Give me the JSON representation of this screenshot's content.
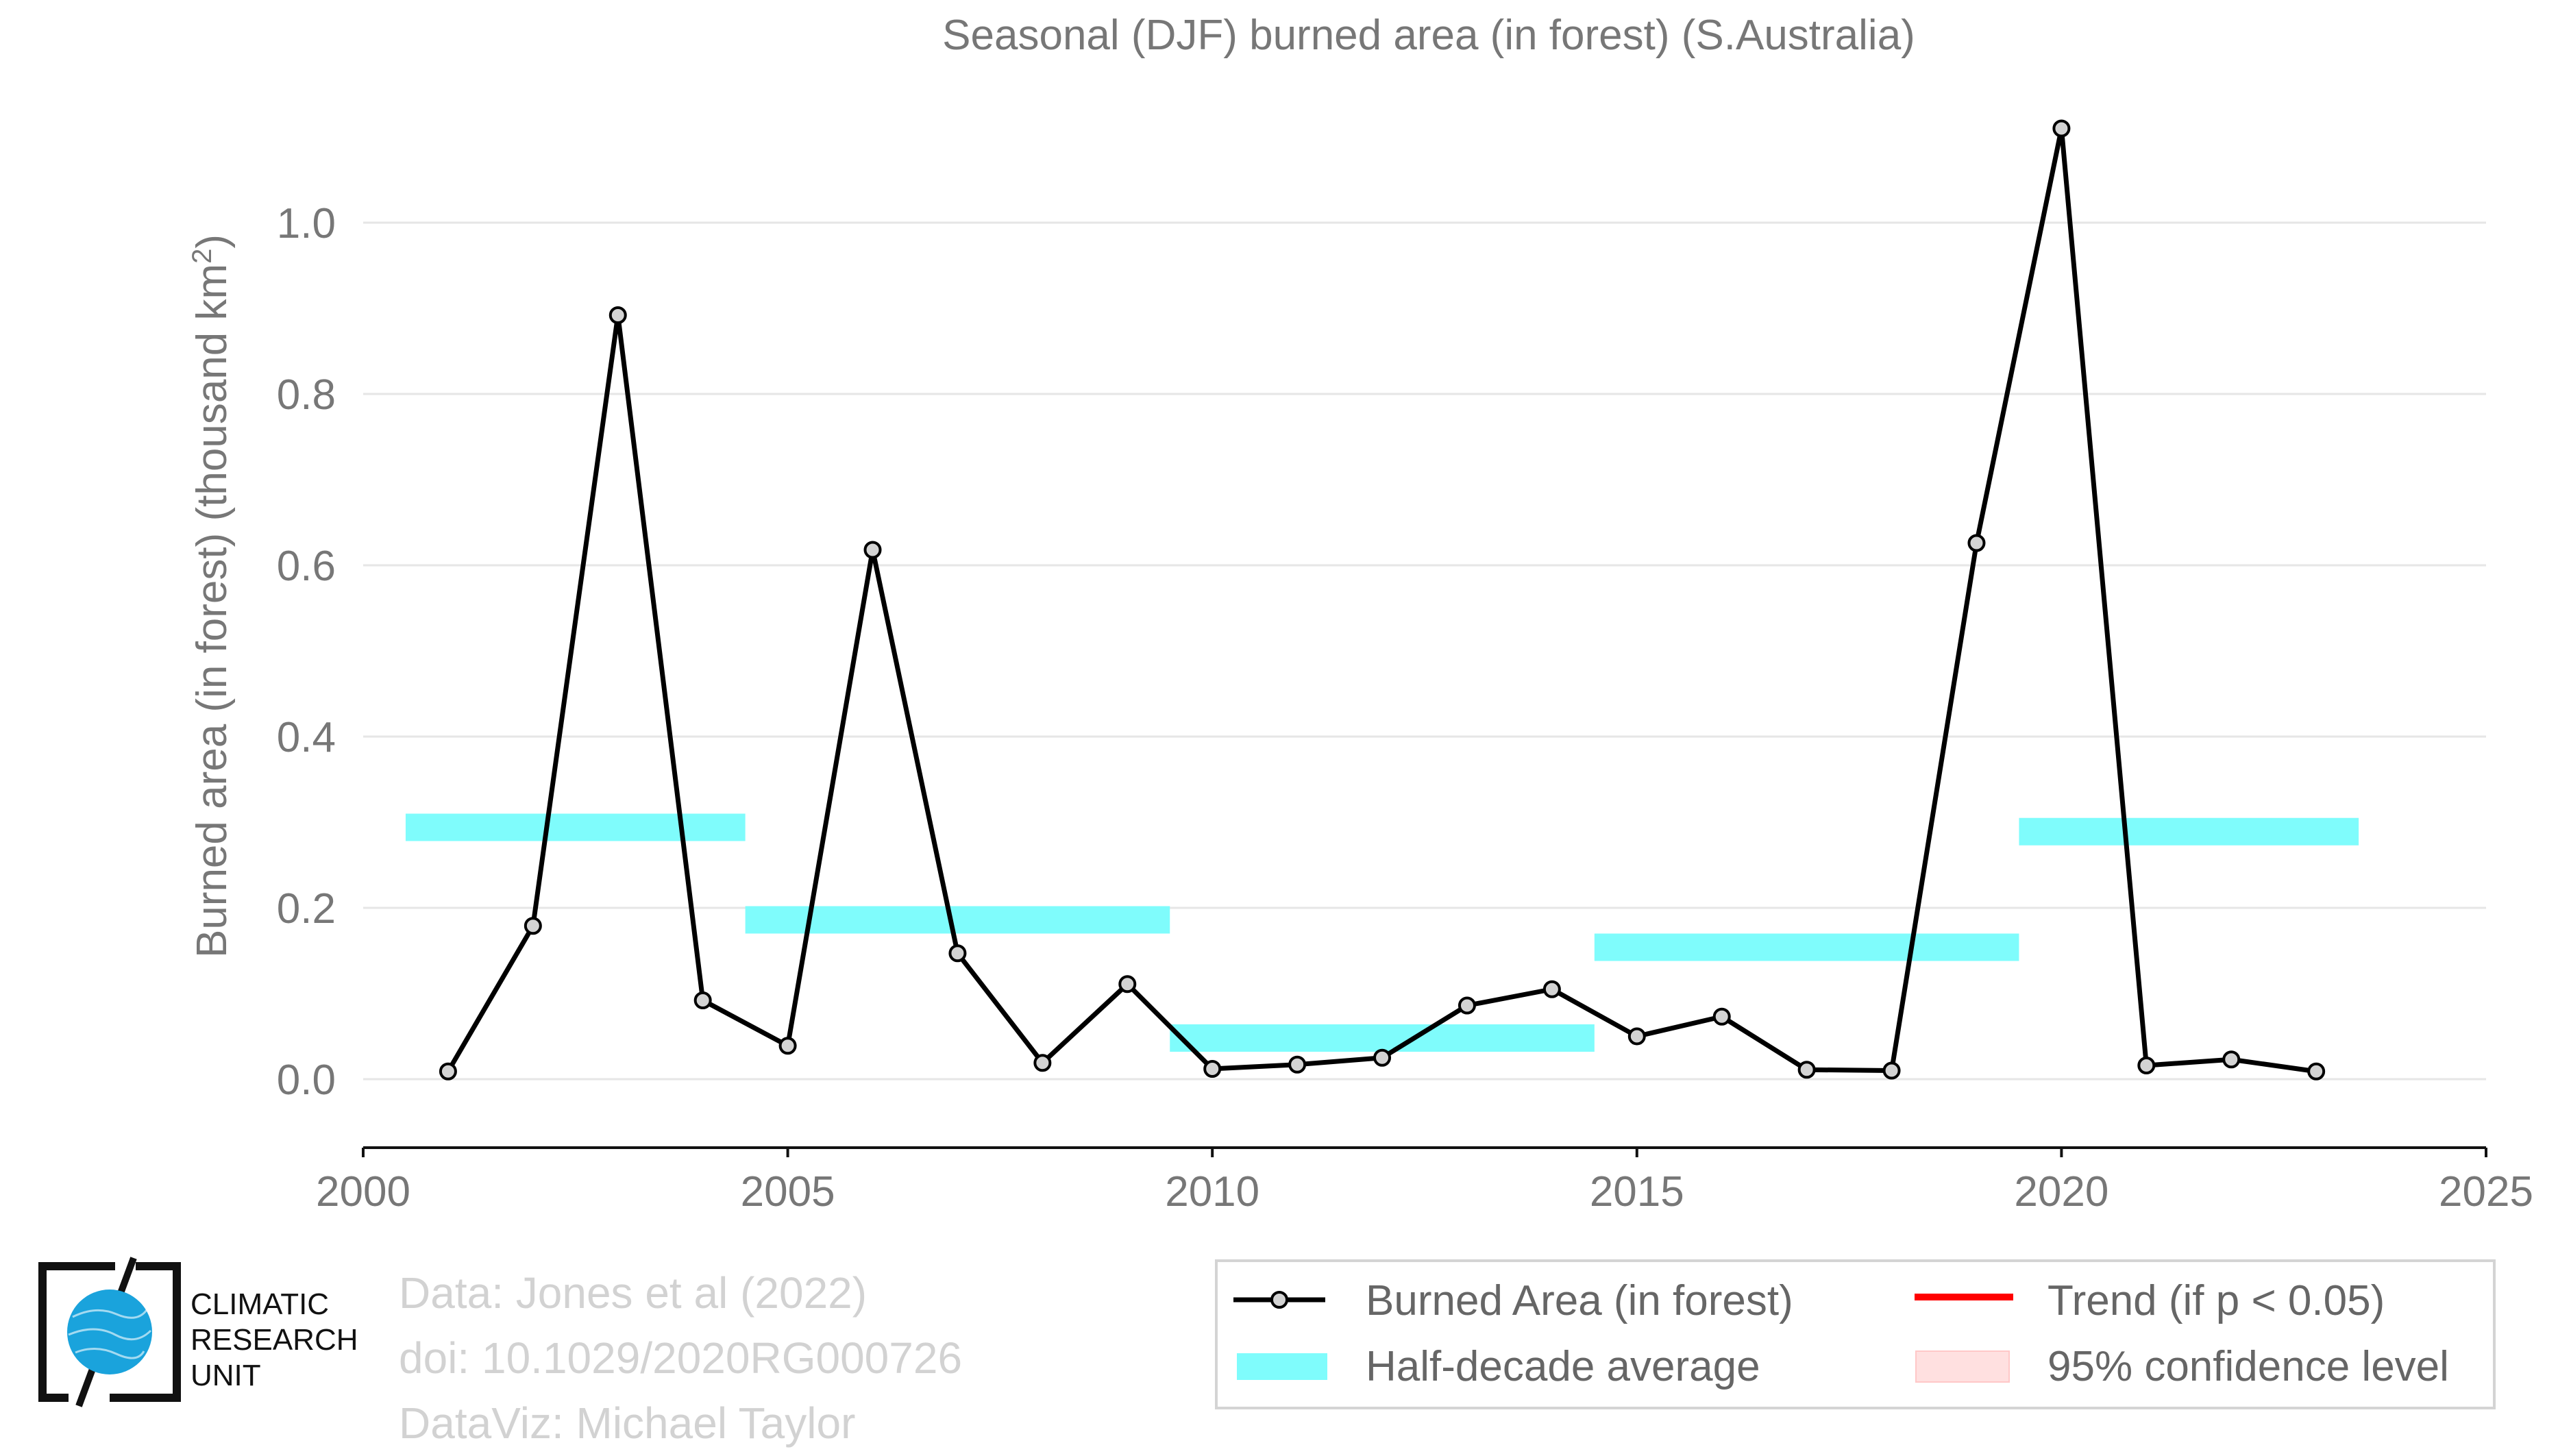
{
  "chart_data": {
    "type": "line",
    "title": "Seasonal (DJF) burned area (in forest) (S.Australia)",
    "ylabel": "Burned area (in forest) (thousand km²)",
    "ylabel_main": "Burned area (in forest) (thousand km",
    "ylabel_sup": "2",
    "ylabel_close": ")",
    "xlabel": "",
    "xlim": [
      2000,
      2025
    ],
    "ylim": [
      -0.08,
      1.12
    ],
    "x_ticks": [
      "2000",
      "2005",
      "2010",
      "2015",
      "2020",
      "2025"
    ],
    "y_ticks": [
      "0.0",
      "0.2",
      "0.4",
      "0.6",
      "0.8",
      "1.0"
    ],
    "grid": "horizontal",
    "series": [
      {
        "name": "Burned Area (in forest)",
        "x": [
          2001,
          2002,
          2003,
          2004,
          2005,
          2006,
          2007,
          2008,
          2009,
          2010,
          2011,
          2012,
          2013,
          2014,
          2015,
          2016,
          2017,
          2018,
          2019,
          2020,
          2021,
          2022,
          2023
        ],
        "y": [
          0.009,
          0.179,
          0.892,
          0.092,
          0.039,
          0.618,
          0.147,
          0.019,
          0.111,
          0.012,
          0.017,
          0.025,
          0.086,
          0.105,
          0.05,
          0.073,
          0.011,
          0.01,
          0.626,
          1.11,
          0.016,
          0.023,
          0.009
        ],
        "color": "#000000",
        "marker_fill": "#d3d3d3"
      }
    ],
    "half_decade_average": {
      "name": "Half-decade average",
      "color": "#7ffcfc",
      "segments": [
        {
          "x0": 2000.5,
          "x1": 2004.5,
          "y": 0.294
        },
        {
          "x0": 2004.5,
          "x1": 2009.5,
          "y": 0.186
        },
        {
          "x0": 2009.5,
          "x1": 2014.5,
          "y": 0.048
        },
        {
          "x0": 2014.5,
          "x1": 2019.5,
          "y": 0.154
        },
        {
          "x0": 2019.5,
          "x1": 2023.5,
          "y": 0.289
        }
      ]
    },
    "legend": {
      "placement": "bottom-right",
      "entries": [
        {
          "label": "Burned Area (in forest)",
          "kind": "line-marker",
          "color": "#000000"
        },
        {
          "label": "Trend (if p < 0.05)",
          "kind": "line",
          "color": "#ff0000"
        },
        {
          "label": "Half-decade average",
          "kind": "band",
          "color": "#7ffcfc"
        },
        {
          "label": "95% confidence level",
          "kind": "patch",
          "color": "#ffe0e0"
        }
      ]
    }
  },
  "credits": {
    "line1": "Data: Jones et al (2022)",
    "line2": "doi: 10.1029/2020RG000726",
    "line3": "DataViz: Michael Taylor"
  },
  "logo": {
    "line1": "CLIMATIC",
    "line2": "RESEARCH",
    "line3": "UNIT",
    "globe_color": "#1aa3dc"
  }
}
